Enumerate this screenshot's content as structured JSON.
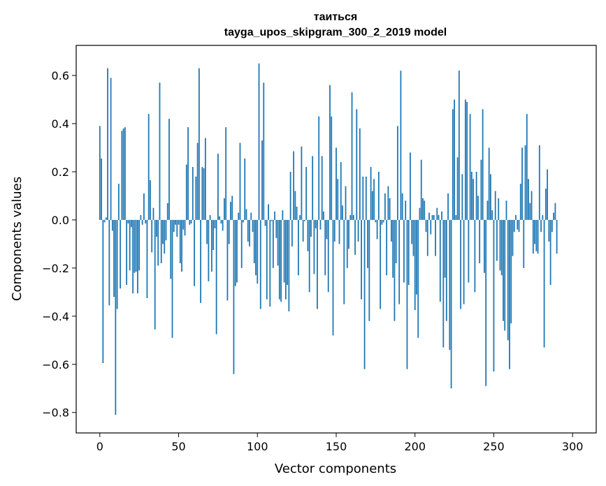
{
  "chart_data": {
    "type": "bar",
    "title": "таиться",
    "subtitle": "tayga_upos_skipgram_300_2_2019 model",
    "xlabel": "Vector components",
    "ylabel": "Components values",
    "xlim": [
      -15,
      315
    ],
    "ylim": [
      -0.885,
      0.725
    ],
    "x_ticks": [
      0,
      50,
      100,
      150,
      200,
      250,
      300
    ],
    "x_tick_labels": [
      "0",
      "50",
      "100",
      "150",
      "200",
      "250",
      "300"
    ],
    "y_ticks": [
      -0.8,
      -0.6,
      -0.4,
      -0.2,
      0.0,
      0.2,
      0.4,
      0.6
    ],
    "y_tick_labels": [
      "−0.8",
      "−0.6",
      "−0.4",
      "−0.2",
      "0.0",
      "0.2",
      "0.4",
      "0.6"
    ],
    "bar_color": "#1f77b4",
    "values": [
      0.39,
      0.255,
      -0.595,
      -0.01,
      0.01,
      0.63,
      -0.355,
      0.59,
      -0.045,
      -0.32,
      -0.81,
      -0.37,
      0.15,
      -0.285,
      0.37,
      0.38,
      0.385,
      -0.27,
      -0.015,
      -0.21,
      -0.03,
      -0.305,
      -0.22,
      -0.215,
      -0.305,
      -0.21,
      0.02,
      -0.02,
      0.11,
      -0.015,
      -0.325,
      0.44,
      0.165,
      -0.135,
      0.05,
      -0.455,
      -0.07,
      -0.19,
      0.57,
      -0.18,
      -0.1,
      -0.14,
      -0.085,
      0.07,
      0.42,
      -0.245,
      -0.49,
      -0.05,
      -0.02,
      -0.07,
      -0.02,
      -0.18,
      -0.215,
      -0.04,
      -0.065,
      0.23,
      0.385,
      -0.02,
      -0.015,
      0.22,
      -0.275,
      0.18,
      0.32,
      0.63,
      -0.345,
      0.22,
      0.215,
      0.34,
      -0.1,
      -0.255,
      0.02,
      -0.215,
      -0.125,
      -0.035,
      -0.475,
      0.275,
      0.015,
      -0.015,
      -0.045,
      0.09,
      0.385,
      -0.335,
      -0.1,
      0.075,
      0.1,
      -0.64,
      -0.275,
      -0.26,
      0.03,
      0.32,
      -0.2,
      -0.01,
      0.255,
      0.045,
      -0.09,
      -0.11,
      0.03,
      -0.05,
      -0.18,
      -0.23,
      -0.265,
      0.65,
      -0.37,
      0.33,
      0.57,
      -0.025,
      -0.33,
      0.065,
      -0.36,
      -0.005,
      -0.2,
      0.035,
      -0.075,
      -0.19,
      -0.33,
      -0.34,
      0.04,
      -0.26,
      -0.33,
      -0.27,
      -0.38,
      0.2,
      -0.11,
      0.285,
      0.12,
      0.055,
      -0.23,
      0.02,
      0.305,
      -0.09,
      -0.005,
      0.22,
      -0.13,
      -0.3,
      -0.07,
      0.265,
      -0.225,
      -0.035,
      -0.37,
      0.43,
      -0.04,
      0.265,
      0.035,
      -0.23,
      -0.08,
      -0.3,
      0.56,
      0.43,
      -0.48,
      -0.09,
      0.3,
      0.17,
      -0.1,
      0.24,
      0.06,
      -0.35,
      0.14,
      -0.2,
      -0.12,
      0.02,
      0.53,
      0.02,
      -0.145,
      0.46,
      -0.09,
      0.38,
      -0.33,
      0.18,
      -0.62,
      0.18,
      -0.2,
      -0.42,
      0.22,
      0.12,
      0.17,
      -0.01,
      -0.08,
      0.2,
      -0.37,
      -0.02,
      -0.01,
      0.11,
      -0.23,
      0.14,
      0.09,
      -0.09,
      -0.24,
      -0.42,
      -0.18,
      0.39,
      -0.35,
      0.62,
      0.11,
      -0.26,
      0.08,
      -0.62,
      -0.27,
      0.28,
      -0.1,
      -0.15,
      -0.375,
      -0.31,
      -0.49,
      0.05,
      0.25,
      0.09,
      0.08,
      -0.05,
      -0.15,
      0.03,
      -0.06,
      0.02,
      0.02,
      -0.15,
      0.05,
      0.02,
      -0.34,
      0.035,
      -0.53,
      -0.24,
      -0.42,
      0.11,
      -0.54,
      -0.7,
      0.46,
      0.5,
      0.02,
      0.26,
      0.62,
      -0.37,
      0.19,
      -0.35,
      0.5,
      0.49,
      -0.26,
      0.44,
      0.2,
      0.17,
      -0.3,
      0.2,
      0.1,
      -0.18,
      0.25,
      0.46,
      -0.22,
      -0.69,
      0.08,
      0.3,
      0.19,
      0.04,
      -0.63,
      0.12,
      -0.17,
      0.09,
      -0.21,
      -0.23,
      -0.42,
      -0.46,
      0.08,
      -0.5,
      -0.62,
      -0.43,
      -0.15,
      -0.05,
      0.02,
      -0.04,
      -0.05,
      0.15,
      0.3,
      -0.2,
      0.31,
      0.44,
      0.17,
      0.07,
      0.12,
      -0.14,
      -0.1,
      -0.13,
      -0.14,
      0.31,
      -0.05,
      0.02,
      -0.53,
      0.13,
      0.21,
      -0.09,
      -0.27,
      -0.05,
      0.03,
      0.07,
      -0.14
    ]
  }
}
